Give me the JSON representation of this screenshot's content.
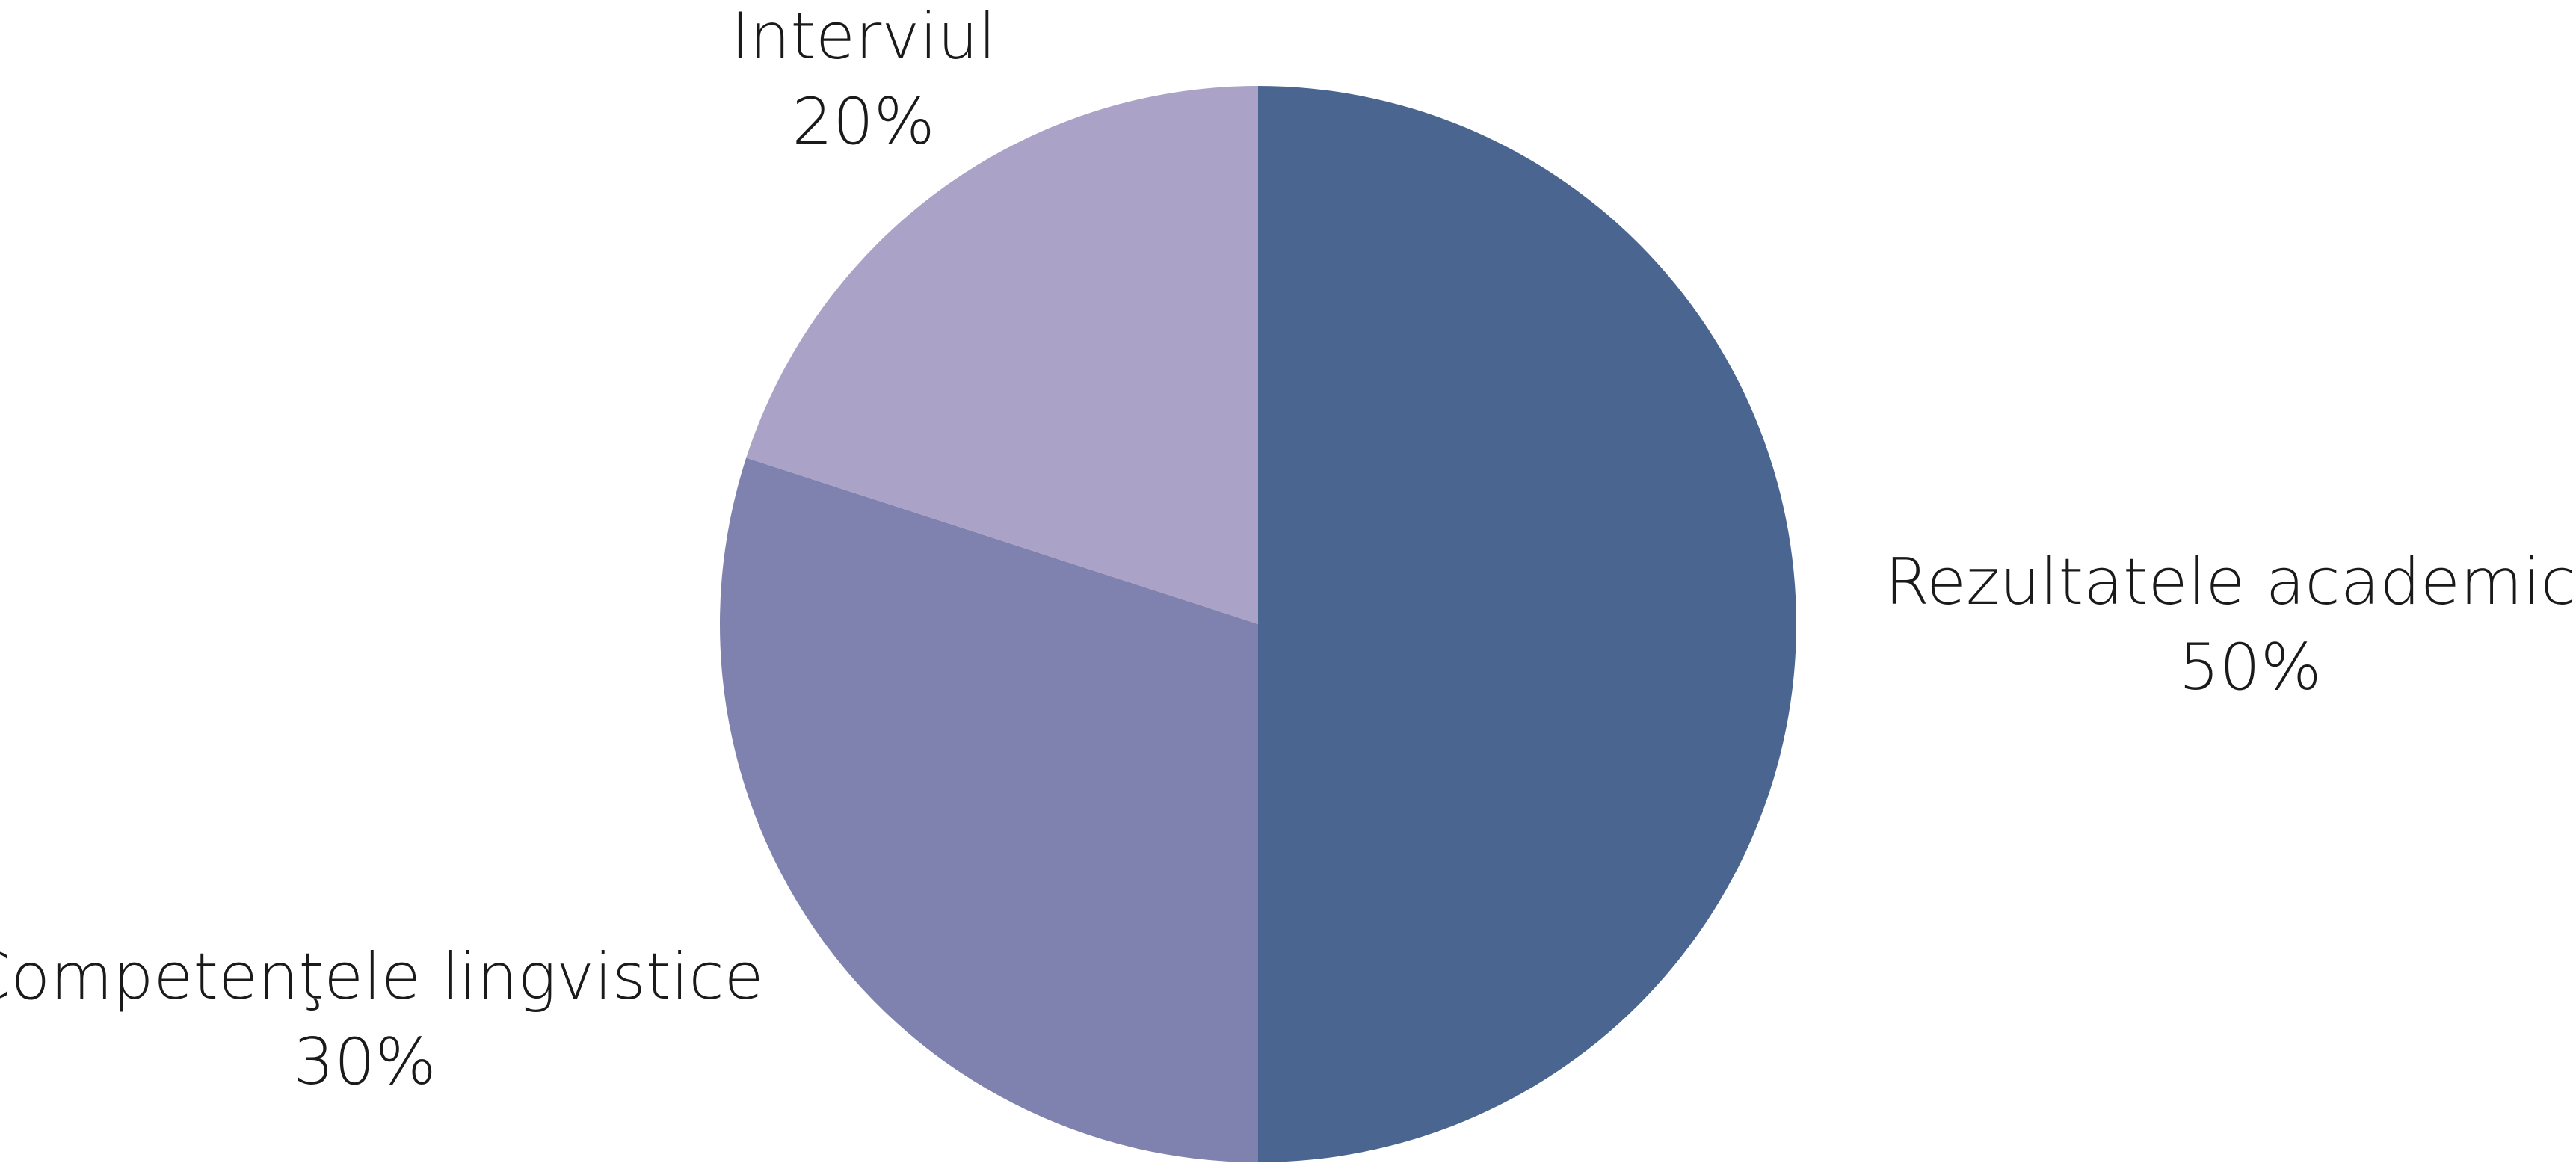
{
  "chart_data": {
    "type": "pie",
    "slices": [
      {
        "label": "Rezultatele academice",
        "value": 50,
        "value_label": "50%",
        "color": "#4a6690"
      },
      {
        "label": "Competenţele lingvistice",
        "value": 30,
        "value_label": "30%",
        "color": "#7f82ae"
      },
      {
        "label": "Interviul",
        "value": 20,
        "value_label": "20%",
        "color": "#aba3c7"
      }
    ],
    "start_angle": "12 o'clock",
    "direction": "clockwise",
    "legend": "none",
    "data_labels": "outside"
  }
}
